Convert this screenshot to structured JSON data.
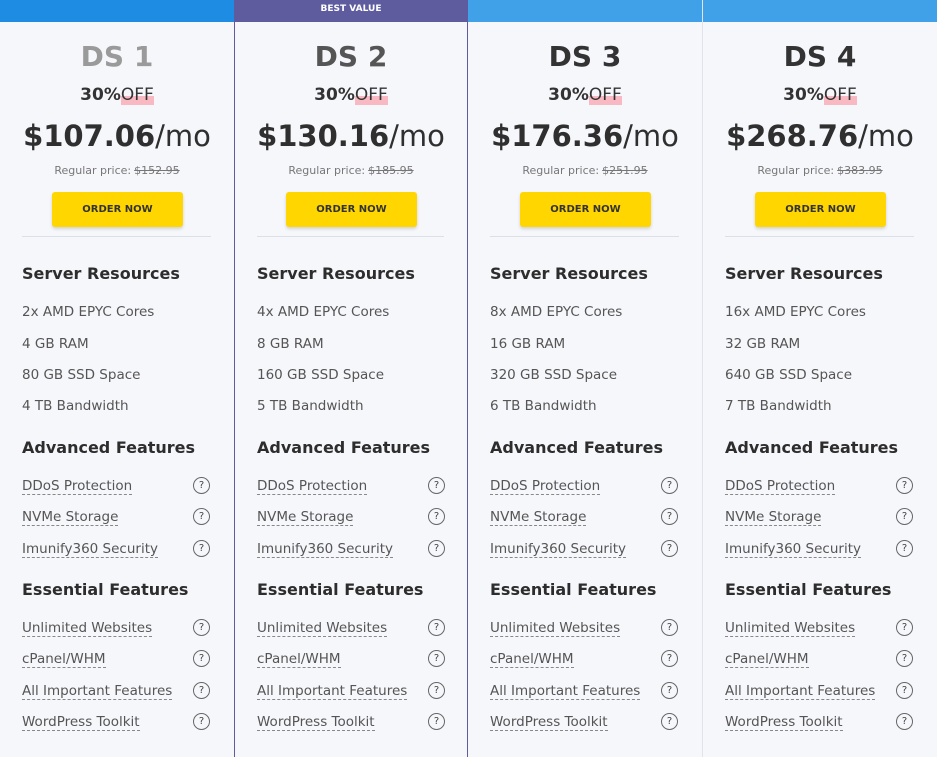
{
  "badge": "BEST VALUE",
  "help": "?",
  "plans": [
    {
      "name": "DS 1",
      "discount": "30%",
      "off": "OFF",
      "price": "$107.06",
      "per": "/mo",
      "regular_label": "Regular price:",
      "regular_price": "$152.95",
      "button": "ORDER NOW",
      "sections": [
        {
          "title": "Server Resources",
          "items": [
            "2x AMD EPYC Cores",
            "4 GB RAM",
            "80 GB SSD Space",
            "4 TB Bandwidth"
          ]
        },
        {
          "title": "Advanced Features",
          "items": [
            "DDoS Protection",
            "NVMe Storage",
            "Imunify360 Security"
          ]
        },
        {
          "title": "Essential Features",
          "items": [
            "Unlimited Websites",
            "cPanel/WHM",
            "All Important Features",
            "WordPress Toolkit"
          ]
        }
      ]
    },
    {
      "name": "DS 2",
      "discount": "30%",
      "off": "OFF",
      "price": "$130.16",
      "per": "/mo",
      "regular_label": "Regular price:",
      "regular_price": "$185.95",
      "button": "ORDER NOW",
      "sections": [
        {
          "title": "Server Resources",
          "items": [
            "4x AMD EPYC Cores",
            "8 GB RAM",
            "160 GB SSD Space",
            "5 TB Bandwidth"
          ]
        },
        {
          "title": "Advanced Features",
          "items": [
            "DDoS Protection",
            "NVMe Storage",
            "Imunify360 Security"
          ]
        },
        {
          "title": "Essential Features",
          "items": [
            "Unlimited Websites",
            "cPanel/WHM",
            "All Important Features",
            "WordPress Toolkit"
          ]
        }
      ]
    },
    {
      "name": "DS 3",
      "discount": "30%",
      "off": "OFF",
      "price": "$176.36",
      "per": "/mo",
      "regular_label": "Regular price:",
      "regular_price": "$251.95",
      "button": "ORDER NOW",
      "sections": [
        {
          "title": "Server Resources",
          "items": [
            "8x AMD EPYC Cores",
            "16 GB RAM",
            "320 GB SSD Space",
            "6 TB Bandwidth"
          ]
        },
        {
          "title": "Advanced Features",
          "items": [
            "DDoS Protection",
            "NVMe Storage",
            "Imunify360 Security"
          ]
        },
        {
          "title": "Essential Features",
          "items": [
            "Unlimited Websites",
            "cPanel/WHM",
            "All Important Features",
            "WordPress Toolkit"
          ]
        }
      ]
    },
    {
      "name": "DS 4",
      "discount": "30%",
      "off": "OFF",
      "price": "$268.76",
      "per": "/mo",
      "regular_label": "Regular price:",
      "regular_price": "$383.95",
      "button": "ORDER NOW",
      "sections": [
        {
          "title": "Server Resources",
          "items": [
            "16x AMD EPYC Cores",
            "32 GB RAM",
            "640 GB SSD Space",
            "7 TB Bandwidth"
          ]
        },
        {
          "title": "Advanced Features",
          "items": [
            "DDoS Protection",
            "NVMe Storage",
            "Imunify360 Security"
          ]
        },
        {
          "title": "Essential Features",
          "items": [
            "Unlimited Websites",
            "cPanel/WHM",
            "All Important Features",
            "WordPress Toolkit"
          ]
        }
      ]
    }
  ]
}
